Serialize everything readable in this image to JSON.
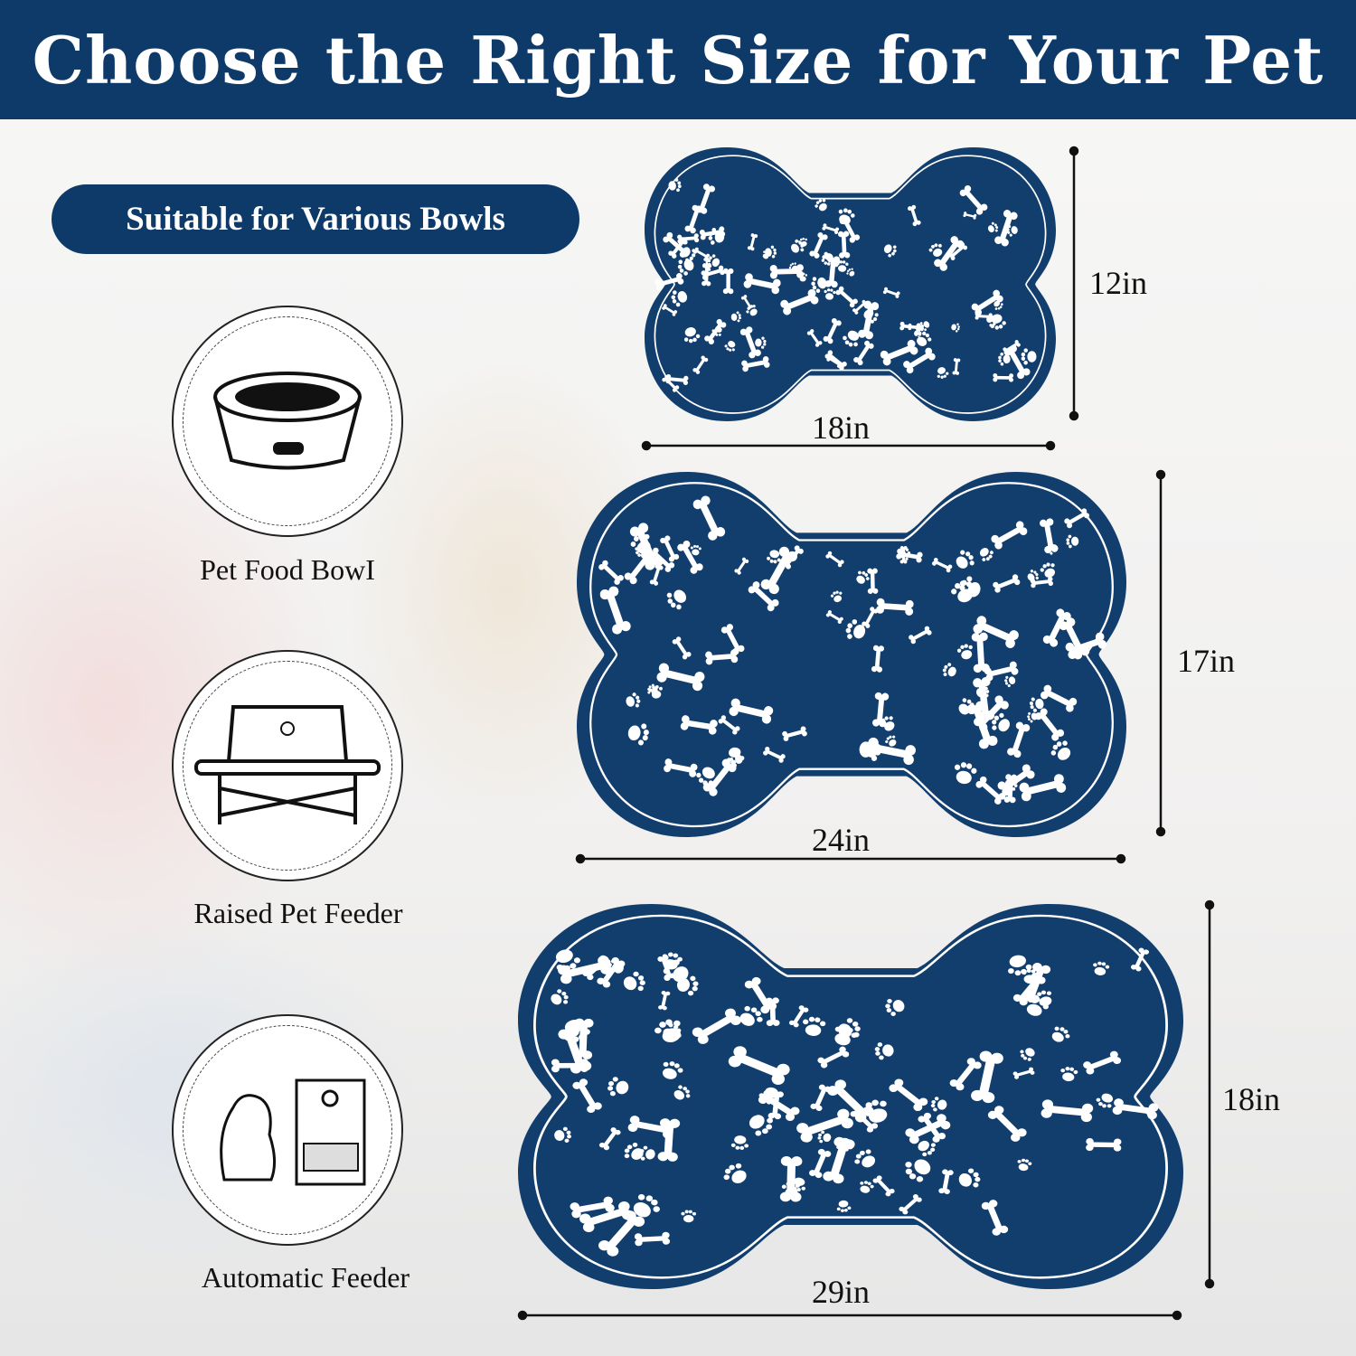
{
  "header": {
    "title": "Choose the Right Size for Your Pet"
  },
  "badge": {
    "text": "Suitable for Various Bowls"
  },
  "uses": [
    {
      "label": "Pet Food BowI",
      "icon": "pet-food-bowl-icon"
    },
    {
      "label": "Raised Pet Feeder",
      "icon": "raised-feeder-icon"
    },
    {
      "label": "Automatic Feeder",
      "icon": "automatic-feeder-icon"
    }
  ],
  "sizes": [
    {
      "width": "18in",
      "height": "12in"
    },
    {
      "width": "24in",
      "height": "17in"
    },
    {
      "width": "29in",
      "height": "18in"
    }
  ],
  "colors": {
    "brand": "#0d3a69",
    "mat": "#123e6e",
    "pattern": "#ffffff"
  }
}
